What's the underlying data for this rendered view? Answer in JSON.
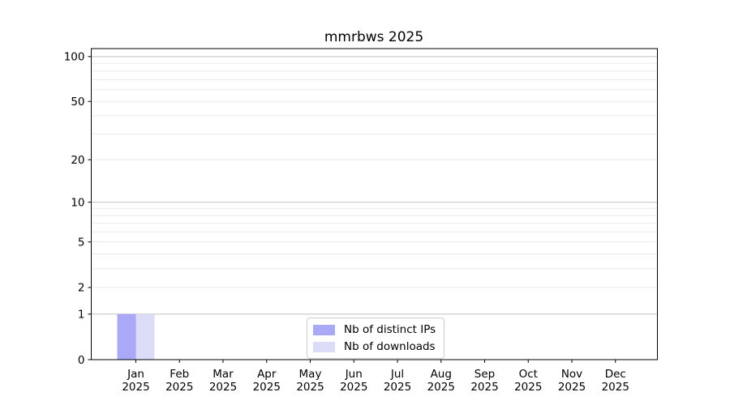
{
  "chart_data": {
    "type": "bar",
    "title": "mmrbws 2025",
    "categories": [
      "Jan",
      "Feb",
      "Mar",
      "Apr",
      "May",
      "Jun",
      "Jul",
      "Aug",
      "Sep",
      "Oct",
      "Nov",
      "Dec"
    ],
    "category_year": "2025",
    "series": [
      {
        "name": "Nb of distinct IPs",
        "color": "#a9a9f8",
        "values": [
          1,
          0,
          0,
          0,
          0,
          0,
          0,
          0,
          0,
          0,
          0,
          0
        ]
      },
      {
        "name": "Nb of downloads",
        "color": "#dcdcf9",
        "values": [
          1,
          0,
          0,
          0,
          0,
          0,
          0,
          0,
          0,
          0,
          0,
          0
        ]
      }
    ],
    "yscale": "log1p",
    "ylim": [
      0,
      113
    ],
    "yticks": [
      0,
      1,
      2,
      5,
      10,
      20,
      50,
      100
    ],
    "grid_major": [
      1,
      10,
      100
    ],
    "grid_minor": [
      2,
      3,
      4,
      5,
      6,
      7,
      8,
      9,
      20,
      30,
      40,
      50,
      60,
      70,
      80,
      90
    ],
    "legend_position": "lower center",
    "xlabel": "",
    "ylabel": ""
  },
  "colors": {
    "background": "#ffffff",
    "axis": "#000000",
    "text": "#000000",
    "grid_major": "#c2c2c2",
    "grid_minor": "#ebebeb",
    "legend_border": "#cccccc"
  }
}
